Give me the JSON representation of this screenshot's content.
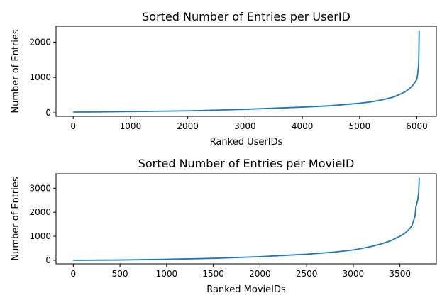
{
  "chart_data": [
    {
      "type": "line",
      "title": "Sorted Number of Entries per UserID",
      "xlabel": "Ranked UserIDs",
      "ylabel": "Number of Entries",
      "xlim": [
        -300,
        6340
      ],
      "ylim": [
        -100,
        2450
      ],
      "xticks": [
        0,
        1000,
        2000,
        3000,
        4000,
        5000,
        6000
      ],
      "yticks": [
        0,
        1000,
        2000
      ],
      "color": "#1f77b4",
      "series": [
        {
          "x": [
            0,
            500,
            1000,
            1500,
            2000,
            2500,
            3000,
            3500,
            4000,
            4500,
            5000,
            5200,
            5400,
            5600,
            5700,
            5800,
            5850,
            5900,
            5950,
            5980,
            6000,
            6010,
            6020,
            6030,
            6035,
            6040
          ],
          "y": [
            20,
            25,
            35,
            45,
            55,
            75,
            100,
            130,
            160,
            200,
            270,
            310,
            370,
            450,
            520,
            600,
            660,
            730,
            820,
            900,
            950,
            1050,
            1200,
            1350,
            1700,
            2314
          ]
        }
      ]
    },
    {
      "type": "line",
      "title": "Sorted Number of Entries per MovieID",
      "xlabel": "Ranked MovieIDs",
      "ylabel": "Number of Entries",
      "xlim": [
        -185,
        3890
      ],
      "ylim": [
        -150,
        3600
      ],
      "xticks": [
        0,
        500,
        1000,
        1500,
        2000,
        2500,
        3000,
        3500
      ],
      "yticks": [
        0,
        1000,
        2000,
        3000
      ],
      "color": "#1f77b4",
      "series": [
        {
          "x": [
            0,
            500,
            1000,
            1500,
            2000,
            2500,
            2800,
            3000,
            3100,
            3200,
            3300,
            3400,
            3500,
            3550,
            3600,
            3630,
            3650,
            3660,
            3670,
            3680,
            3690,
            3700,
            3705,
            3706
          ],
          "y": [
            0,
            10,
            40,
            80,
            150,
            250,
            340,
            430,
            500,
            580,
            680,
            810,
            1000,
            1120,
            1300,
            1450,
            1700,
            1800,
            2200,
            2350,
            2500,
            2800,
            3200,
            3428
          ]
        }
      ]
    }
  ]
}
